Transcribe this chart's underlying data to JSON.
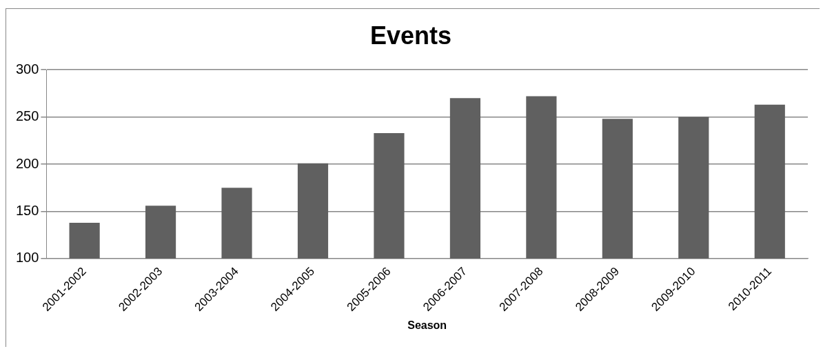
{
  "chart_data": {
    "type": "bar",
    "title": "Events",
    "xlabel": "Season",
    "categories": [
      "2001-2002",
      "2002-2003",
      "2003-2004",
      "2004-2005",
      "2005-2006",
      "2006-2007",
      "2007-2008",
      "2008-2009",
      "2009-2010",
      "2010-2011"
    ],
    "values": [
      138,
      156,
      175,
      201,
      233,
      270,
      272,
      248,
      250,
      263
    ],
    "color": "#606060",
    "ylim": [
      100,
      300
    ],
    "yticks": [
      100,
      150,
      200,
      250,
      300
    ],
    "grid": "y",
    "legend": false
  }
}
